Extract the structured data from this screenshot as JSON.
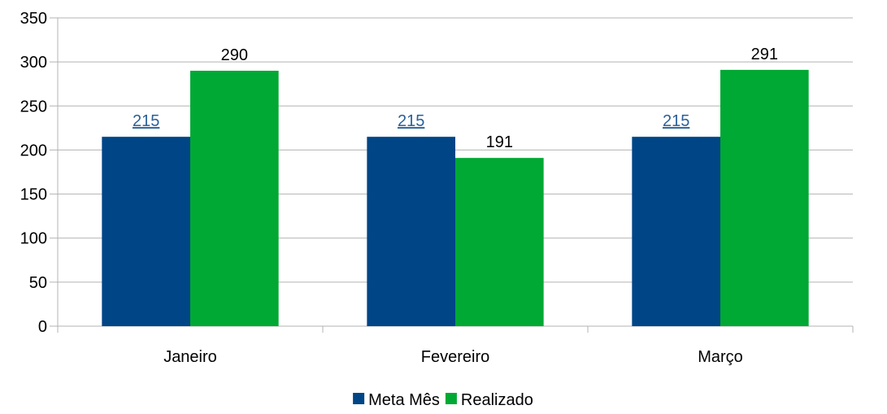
{
  "chart_data": {
    "type": "bar",
    "title": "",
    "xlabel": "",
    "ylabel": "",
    "categories": [
      "Janeiro",
      "Fevereiro",
      "Março"
    ],
    "series": [
      {
        "name": "Meta Mês",
        "values": [
          215,
          215,
          215
        ],
        "color": "#004586",
        "label_color": "#2a6099",
        "label_underline": true
      },
      {
        "name": "Realizado",
        "values": [
          290,
          191,
          291
        ],
        "color": "#00a933",
        "label_color": "#000000",
        "label_underline": false
      }
    ],
    "ylim": [
      0,
      350
    ],
    "yticks": [
      "0",
      "50",
      "100",
      "150",
      "200",
      "250",
      "300",
      "350"
    ],
    "grid": true,
    "legend_position": "bottom-center",
    "colors": {
      "grid": "#b3b3b3",
      "axis": "#b3b3b3"
    }
  }
}
